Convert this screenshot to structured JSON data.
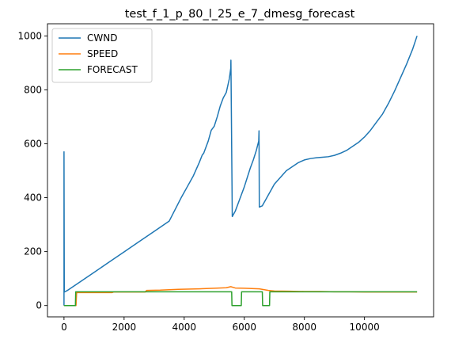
{
  "chart_data": {
    "type": "line",
    "title": "test_f_1_p_80_l_25_e_7_dmesg_forecast",
    "xlabel": "",
    "ylabel": "",
    "xlim": [
      -550,
      12300
    ],
    "ylim": [
      -42,
      1045
    ],
    "xticks": [
      0,
      2000,
      4000,
      6000,
      8000,
      10000
    ],
    "yticks": [
      0,
      200,
      400,
      600,
      800,
      1000
    ],
    "grid": false,
    "legend_position": "top-left",
    "series": [
      {
        "name": "CWND",
        "color": "#1f77b4",
        "x": [
          0,
          0,
          10,
          100,
          500,
          1000,
          1500,
          2000,
          2500,
          3000,
          3500,
          3900,
          4000,
          4100,
          4200,
          4300,
          4400,
          4500,
          4600,
          4650,
          4700,
          4800,
          4900,
          5000,
          5100,
          5200,
          5300,
          5400,
          5500,
          5550,
          5555,
          5600,
          5700,
          5800,
          5900,
          6000,
          6100,
          6200,
          6300,
          6400,
          6480,
          6490,
          6500,
          6600,
          6700,
          6800,
          6900,
          7000,
          7200,
          7400,
          7600,
          7800,
          8000,
          8200,
          8400,
          8600,
          8800,
          9000,
          9200,
          9400,
          9600,
          9800,
          10000,
          10200,
          10400,
          10600,
          10800,
          11000,
          11200,
          11400,
          11600,
          11750
        ],
        "y": [
          0,
          570,
          50,
          55,
          85,
          123,
          161,
          199,
          237,
          275,
          313,
          400,
          420,
          440,
          460,
          480,
          505,
          530,
          558,
          565,
          580,
          610,
          650,
          665,
          700,
          740,
          770,
          790,
          840,
          880,
          910,
          330,
          350,
          380,
          410,
          440,
          475,
          510,
          540,
          575,
          610,
          648,
          365,
          370,
          390,
          410,
          430,
          450,
          475,
          500,
          515,
          530,
          540,
          545,
          548,
          550,
          552,
          557,
          565,
          575,
          590,
          605,
          625,
          650,
          680,
          710,
          750,
          795,
          845,
          895,
          950,
          1000
        ]
      },
      {
        "name": "SPEED",
        "color": "#ff7f0e",
        "x": [
          0,
          400,
          420,
          1600,
          1650,
          2700,
          2750,
          3200,
          3800,
          4500,
          5000,
          5400,
          5550,
          5700,
          6000,
          6500,
          6800,
          7000,
          7500,
          8000,
          8500,
          9000,
          9500,
          10000,
          10500,
          11000,
          11750
        ],
        "y": [
          0,
          0,
          48,
          48,
          50,
          50,
          56,
          57,
          60,
          62,
          64,
          66,
          70,
          65,
          64,
          62,
          56,
          54,
          53,
          52,
          52,
          51,
          51,
          50,
          50,
          50,
          50
        ]
      },
      {
        "name": "FORECAST",
        "color": "#2ca02c",
        "x": [
          0,
          380,
          390,
          5580,
          5590,
          5900,
          5910,
          6600,
          6610,
          6840,
          6850,
          11750
        ],
        "y": [
          0,
          0,
          51,
          51,
          0,
          0,
          51,
          51,
          0,
          0,
          51,
          51
        ]
      }
    ]
  }
}
